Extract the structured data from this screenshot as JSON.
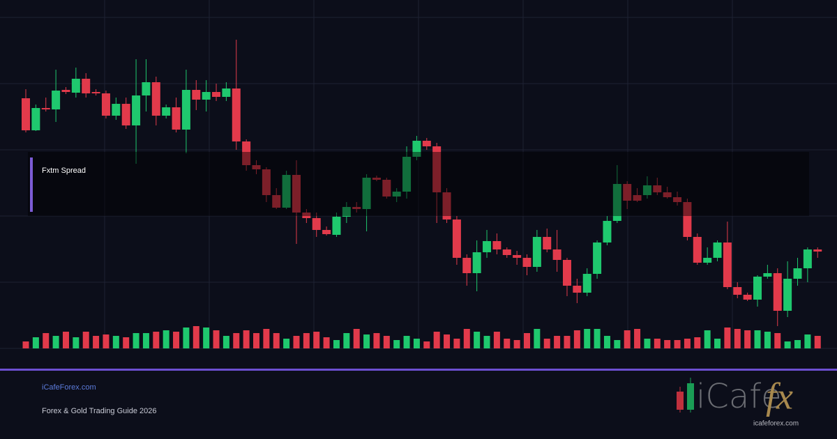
{
  "chart_data": {
    "type": "candlestick",
    "annotation": "Fxtm Spread",
    "up_color": "#1fc86e",
    "down_color": "#e23a4b",
    "open": [
      359,
      313,
      345,
      343,
      371,
      367,
      387,
      368,
      366,
      334,
      351,
      320,
      363,
      382,
      334,
      346,
      314,
      371,
      357,
      368,
      361,
      373,
      297,
      263,
      257,
      220,
      202,
      249,
      195,
      187,
      170,
      163,
      189,
      203,
      200,
      245,
      242,
      218,
      225,
      275,
      298,
      290,
      224,
      185,
      130,
      108,
      138,
      154,
      142,
      134,
      130,
      117,
      160,
      142,
      127,
      90,
      80,
      107,
      152,
      183,
      236,
      220,
      220,
      234,
      224,
      217,
      210,
      160,
      123,
      130,
      152,
      88,
      77,
      70,
      103,
      108,
      54,
      100,
      115,
      142
    ],
    "high": [
      372,
      350,
      360,
      400,
      375,
      403,
      395,
      372,
      370,
      360,
      360,
      415,
      415,
      390,
      350,
      360,
      400,
      385,
      385,
      380,
      382,
      443,
      300,
      270,
      260,
      230,
      255,
      270,
      200,
      195,
      175,
      195,
      210,
      210,
      250,
      248,
      245,
      230,
      290,
      305,
      302,
      295,
      230,
      190,
      135,
      155,
      170,
      165,
      145,
      140,
      135,
      170,
      172,
      170,
      130,
      100,
      115,
      155,
      190,
      263,
      240,
      230,
      247,
      245,
      232,
      225,
      215,
      165,
      145,
      155,
      182,
      95,
      80,
      105,
      120,
      115,
      125,
      130,
      145,
      145
    ],
    "low": [
      310,
      312,
      340,
      325,
      365,
      360,
      360,
      363,
      330,
      328,
      315,
      265,
      340,
      320,
      330,
      310,
      280,
      342,
      340,
      355,
      355,
      285,
      255,
      250,
      210,
      200,
      200,
      150,
      180,
      160,
      162,
      160,
      180,
      195,
      168,
      240,
      215,
      210,
      215,
      270,
      285,
      180,
      180,
      120,
      90,
      82,
      130,
      135,
      130,
      120,
      105,
      110,
      138,
      110,
      75,
      65,
      75,
      100,
      148,
      180,
      200,
      210,
      215,
      220,
      215,
      205,
      155,
      120,
      120,
      125,
      85,
      72,
      68,
      60,
      100,
      32,
      45,
      90,
      95,
      130
    ],
    "close": [
      313,
      345,
      343,
      370,
      368,
      387,
      366,
      366,
      334,
      351,
      320,
      363,
      382,
      334,
      346,
      314,
      371,
      357,
      368,
      361,
      373,
      297,
      263,
      257,
      220,
      202,
      249,
      195,
      187,
      170,
      164,
      189,
      203,
      200,
      245,
      242,
      218,
      225,
      275,
      298,
      290,
      224,
      185,
      130,
      108,
      138,
      154,
      142,
      134,
      130,
      117,
      160,
      142,
      127,
      90,
      80,
      107,
      152,
      183,
      236,
      212,
      212,
      234,
      224,
      217,
      210,
      160,
      123,
      130,
      152,
      88,
      77,
      70,
      103,
      108,
      54,
      100,
      115,
      142,
      139
    ],
    "volume": [
      10,
      16,
      22,
      18,
      24,
      16,
      24,
      18,
      20,
      18,
      16,
      22,
      22,
      24,
      26,
      24,
      30,
      32,
      30,
      26,
      18,
      22,
      26,
      22,
      28,
      22,
      14,
      18,
      22,
      24,
      16,
      12,
      22,
      28,
      20,
      22,
      18,
      12,
      18,
      14,
      10,
      24,
      20,
      14,
      28,
      24,
      18,
      24,
      14,
      12,
      22,
      28,
      14,
      18,
      18,
      26,
      28,
      28,
      18,
      12,
      26,
      28,
      14,
      14,
      12,
      12,
      14,
      16,
      26,
      14,
      30,
      28,
      26,
      26,
      24,
      22,
      10,
      12,
      20,
      18
    ]
  },
  "footer": {
    "site": "iCafeForex.com",
    "tagline": "Forex & Gold Trading Guide 2026"
  },
  "logo": {
    "word": "iCafe",
    "mark": "fx",
    "url": "icafeforex.com"
  }
}
